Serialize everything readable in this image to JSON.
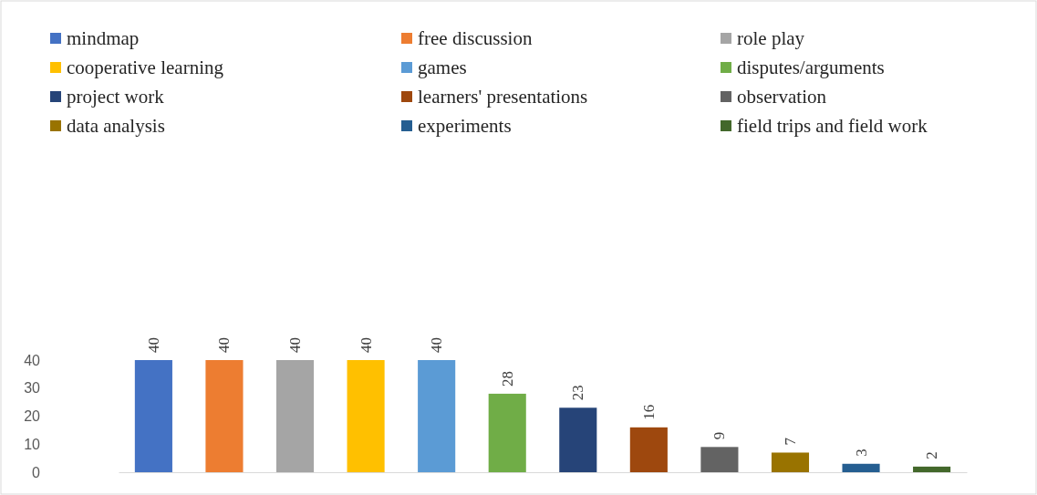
{
  "chart_data": {
    "type": "bar",
    "stacked": true,
    "categories": [
      null,
      null,
      null,
      null,
      null,
      null,
      null,
      null,
      null,
      null,
      null,
      null
    ],
    "series": [
      {
        "name": "mindmap",
        "color": "#4472c4",
        "values": [
          40,
          null,
          null,
          null,
          null,
          null,
          null,
          null,
          null,
          null,
          null,
          null
        ]
      },
      {
        "name": "free discussion",
        "color": "#ed7d31",
        "values": [
          null,
          40,
          null,
          null,
          null,
          null,
          null,
          null,
          null,
          null,
          null,
          null
        ]
      },
      {
        "name": "role play",
        "color": "#a5a5a5",
        "values": [
          null,
          null,
          40,
          null,
          null,
          null,
          null,
          null,
          null,
          null,
          null,
          null
        ]
      },
      {
        "name": "cooperative learning",
        "color": "#ffc000",
        "values": [
          null,
          null,
          null,
          40,
          null,
          null,
          null,
          null,
          null,
          null,
          null,
          null
        ]
      },
      {
        "name": "games",
        "color": "#5b9bd5",
        "values": [
          null,
          null,
          null,
          null,
          40,
          null,
          null,
          null,
          null,
          null,
          null,
          null
        ]
      },
      {
        "name": "disputes/arguments",
        "color": "#70ad47",
        "values": [
          null,
          null,
          null,
          null,
          null,
          28,
          null,
          null,
          null,
          null,
          null,
          null
        ]
      },
      {
        "name": "project work",
        "color": "#264478",
        "values": [
          null,
          null,
          null,
          null,
          null,
          null,
          23,
          null,
          null,
          null,
          null,
          null
        ]
      },
      {
        "name": "learners' presentations",
        "color": "#9e480e",
        "values": [
          null,
          null,
          null,
          null,
          null,
          null,
          null,
          16,
          null,
          null,
          null,
          null
        ]
      },
      {
        "name": "observation",
        "color": "#636363",
        "values": [
          null,
          null,
          null,
          null,
          null,
          null,
          null,
          null,
          9,
          null,
          null,
          null
        ]
      },
      {
        "name": "data analysis",
        "color": "#997300",
        "values": [
          null,
          null,
          null,
          null,
          null,
          null,
          null,
          null,
          null,
          7,
          null,
          null
        ]
      },
      {
        "name": "experiments",
        "color": "#255e91",
        "values": [
          null,
          null,
          null,
          null,
          null,
          null,
          null,
          null,
          null,
          null,
          3,
          null
        ]
      },
      {
        "name": "field trips and field work",
        "color": "#43682b",
        "values": [
          null,
          null,
          null,
          null,
          null,
          null,
          null,
          null,
          null,
          null,
          null,
          2
        ]
      }
    ],
    "ylim": [
      0,
      40
    ],
    "yticks": [
      0,
      10,
      20,
      30,
      40
    ],
    "data_labels": true,
    "legend": "top",
    "grid": false
  }
}
